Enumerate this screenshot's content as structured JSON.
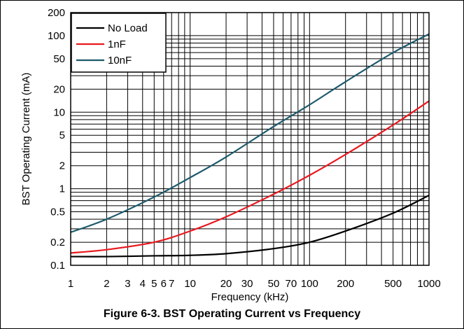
{
  "figure": {
    "caption": "Figure 6-3. BST Operating Current vs Frequency"
  },
  "chart_data": {
    "type": "line",
    "xlabel": "Frequency (kHz)",
    "ylabel": "BST Operating Current (mA)",
    "x_scale": "log",
    "y_scale": "log",
    "xlim": [
      1,
      1000
    ],
    "ylim": [
      0.1,
      200
    ],
    "grid": true,
    "legend_position": "top-left",
    "x_tick_labels": [
      "1",
      "2",
      "3",
      "4",
      "5",
      "6",
      "7",
      "10",
      "20",
      "30",
      "50",
      "70",
      "100",
      "200",
      "500",
      "1000"
    ],
    "x_tick_values": [
      1,
      2,
      3,
      4,
      5,
      6,
      7,
      10,
      20,
      30,
      50,
      70,
      100,
      200,
      500,
      1000
    ],
    "y_tick_labels": [
      "0.1",
      "0.2",
      "0.5",
      "1",
      "2",
      "5",
      "10",
      "20",
      "50",
      "100",
      "200"
    ],
    "y_tick_values": [
      0.1,
      0.2,
      0.5,
      1,
      2,
      5,
      10,
      20,
      50,
      100,
      200
    ],
    "series": [
      {
        "name": "No Load",
        "color": "#000000",
        "x": [
          1,
          2,
          5,
          10,
          20,
          50,
          100,
          200,
          500,
          1000
        ],
        "y": [
          0.13,
          0.13,
          0.133,
          0.135,
          0.142,
          0.165,
          0.2,
          0.28,
          0.48,
          0.82
        ]
      },
      {
        "name": "1nF",
        "color": "#e8191f",
        "x": [
          1,
          2,
          5,
          10,
          20,
          50,
          100,
          200,
          500,
          1000
        ],
        "y": [
          0.145,
          0.16,
          0.2,
          0.28,
          0.43,
          0.85,
          1.5,
          2.8,
          6.8,
          14
        ]
      },
      {
        "name": "10nF",
        "color": "#1c5a6b",
        "x": [
          1,
          2,
          5,
          10,
          20,
          50,
          100,
          200,
          500,
          1000
        ],
        "y": [
          0.27,
          0.4,
          0.78,
          1.4,
          2.6,
          6.5,
          12.5,
          25,
          60,
          105
        ]
      }
    ]
  }
}
